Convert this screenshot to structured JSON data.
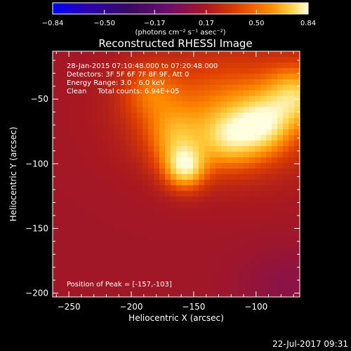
{
  "chart_data": {
    "type": "heatmap",
    "title": "Reconstructed RHESSI Image",
    "xlabel": "Heliocentric X (arcsec)",
    "ylabel": "Heliocentric Y (arcsec)",
    "xlim": [
      -263,
      -65
    ],
    "ylim": [
      -203,
      -13
    ],
    "x_ticks": [
      -250,
      -200,
      -150,
      -100
    ],
    "y_ticks": [
      -50,
      -100,
      -150,
      -200
    ],
    "x_tick_labels": [
      "−250",
      "−200",
      "−150",
      "−100"
    ],
    "y_tick_labels": [
      "−50",
      "−100",
      "−150",
      "−200"
    ],
    "colorbar": {
      "min": -0.84,
      "max": 0.84,
      "ticks": [
        -0.84,
        -0.5,
        -0.17,
        0.17,
        0.5,
        0.84
      ],
      "tick_labels": [
        "−0.84",
        "−0.50",
        "−0.17",
        "0.17",
        "0.50",
        "0.84"
      ],
      "unit_label": "(photons cm⁻² s⁻¹ asec⁻²)",
      "colors": [
        "#0000ff",
        "#2a00b0",
        "#3a0a60",
        "#6a0d6e",
        "#a81820",
        "#e04000",
        "#ff8a00",
        "#ffd040",
        "#ffffe0"
      ]
    },
    "annotations": [
      "28-Jan-2015 07:10:48.000 to 07:20:48.000",
      "Detectors: 3F 5F 6F 7F 8F 9F, Att 0",
      "Energy Range: 3.0 - 6.0 keV",
      "Clean     Total counts: 6.94E+05",
      "Position of Peak = [-157,-103]"
    ],
    "peak": {
      "x": -157,
      "y": -103,
      "value": 0.84
    },
    "sources": [
      {
        "x": -157,
        "y": -103,
        "value": 0.84
      },
      {
        "x": -95,
        "y": -70,
        "value": 0.7
      },
      {
        "x": -122,
        "y": -80,
        "value": 0.62
      },
      {
        "x": -68,
        "y": -48,
        "value": 0.68
      },
      {
        "x": -165,
        "y": -80,
        "value": 0.55
      },
      {
        "x": -185,
        "y": -45,
        "value": 0.45
      }
    ],
    "grid": false
  },
  "footer": {
    "timestamp": "22-Jul-2017 09:31"
  }
}
